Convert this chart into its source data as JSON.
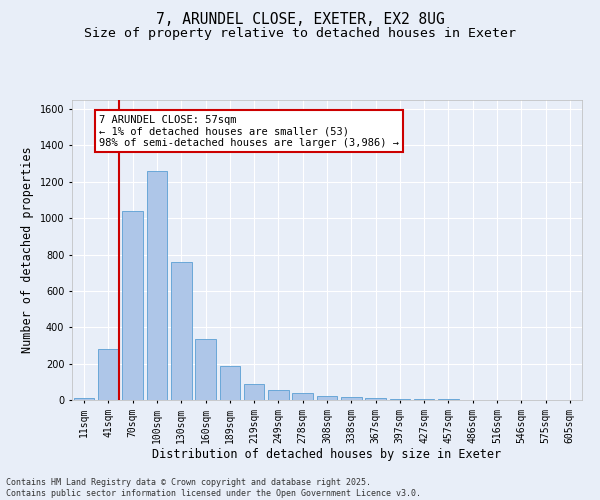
{
  "title_line1": "7, ARUNDEL CLOSE, EXETER, EX2 8UG",
  "title_line2": "Size of property relative to detached houses in Exeter",
  "xlabel": "Distribution of detached houses by size in Exeter",
  "ylabel": "Number of detached properties",
  "categories": [
    "11sqm",
    "41sqm",
    "70sqm",
    "100sqm",
    "130sqm",
    "160sqm",
    "189sqm",
    "219sqm",
    "249sqm",
    "278sqm",
    "308sqm",
    "338sqm",
    "367sqm",
    "397sqm",
    "427sqm",
    "457sqm",
    "486sqm",
    "516sqm",
    "546sqm",
    "575sqm",
    "605sqm"
  ],
  "values": [
    10,
    280,
    1040,
    1260,
    760,
    335,
    185,
    90,
    55,
    38,
    22,
    18,
    10,
    5,
    5,
    3,
    2,
    2,
    2,
    2,
    2
  ],
  "bar_color": "#aec6e8",
  "bar_edge_color": "#5a9fd4",
  "vline_color": "#cc0000",
  "vline_x": 1.45,
  "annotation_text": "7 ARUNDEL CLOSE: 57sqm\n← 1% of detached houses are smaller (53)\n98% of semi-detached houses are larger (3,986) →",
  "annotation_box_color": "#ffffff",
  "annotation_box_edge_color": "#cc0000",
  "ylim": [
    0,
    1650
  ],
  "yticks": [
    0,
    200,
    400,
    600,
    800,
    1000,
    1200,
    1400,
    1600
  ],
  "background_color": "#e8eef8",
  "grid_color": "#ffffff",
  "footnote": "Contains HM Land Registry data © Crown copyright and database right 2025.\nContains public sector information licensed under the Open Government Licence v3.0.",
  "title_fontsize": 10.5,
  "subtitle_fontsize": 9.5,
  "axis_label_fontsize": 8.5,
  "tick_fontsize": 7,
  "annotation_fontsize": 7.5,
  "footnote_fontsize": 6
}
